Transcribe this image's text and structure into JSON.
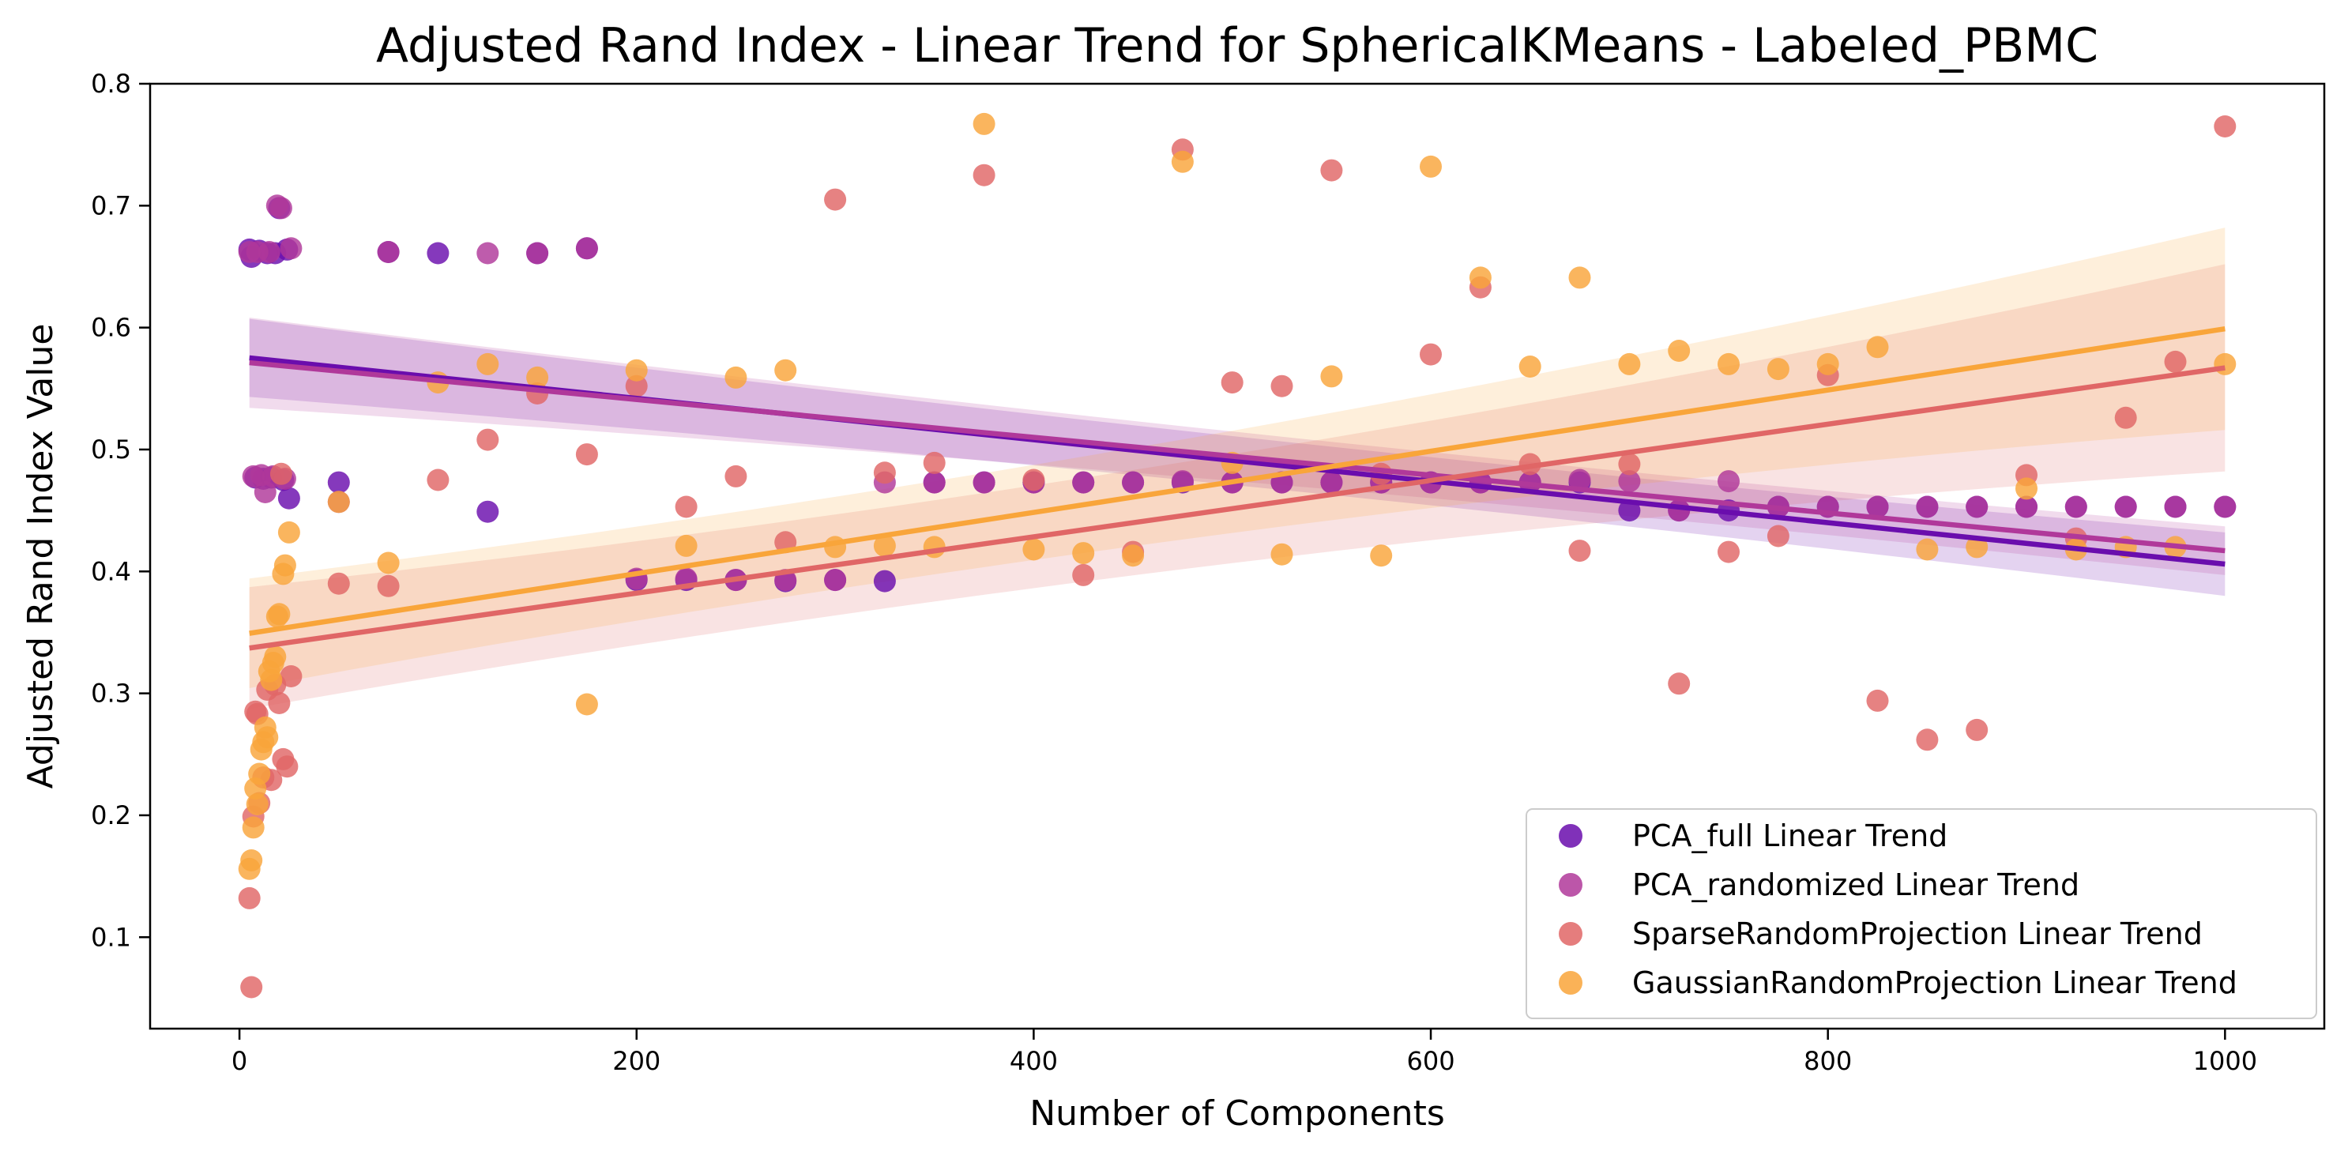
{
  "chart_data": {
    "type": "scatter",
    "title": "Adjusted Rand Index - Linear Trend for SphericalKMeans - Labeled_PBMC",
    "xlabel": "Number of Components",
    "ylabel": "Adjusted Rand Index Value",
    "xlim": [
      -45,
      1050
    ],
    "ylim": [
      0.025,
      0.8
    ],
    "xticks": [
      0,
      200,
      400,
      600,
      800,
      1000
    ],
    "yticks": [
      0.1,
      0.2,
      0.3,
      0.4,
      0.5,
      0.6,
      0.7,
      0.8
    ],
    "xtick_labels": [
      "0",
      "200",
      "400",
      "600",
      "800",
      "1000"
    ],
    "ytick_labels": [
      "0.1",
      "0.2",
      "0.3",
      "0.4",
      "0.5",
      "0.6",
      "0.7",
      "0.8"
    ],
    "grid": false,
    "legend_position": "bottom-right",
    "series": [
      {
        "name": "PCA_full Linear Trend",
        "color": "#6a0dad",
        "points": [
          [
            5,
            0.664
          ],
          [
            6,
            0.658
          ],
          [
            8,
            0.477
          ],
          [
            10,
            0.663
          ],
          [
            12,
            0.476
          ],
          [
            14,
            0.661
          ],
          [
            16,
            0.477
          ],
          [
            18,
            0.661
          ],
          [
            20,
            0.698
          ],
          [
            22,
            0.475
          ],
          [
            24,
            0.664
          ],
          [
            25,
            0.46
          ],
          [
            50,
            0.473
          ],
          [
            75,
            0.662
          ],
          [
            100,
            0.661
          ],
          [
            125,
            0.449
          ],
          [
            150,
            0.661
          ],
          [
            175,
            0.665
          ],
          [
            200,
            0.393
          ],
          [
            225,
            0.393
          ],
          [
            250,
            0.393
          ],
          [
            275,
            0.392
          ],
          [
            300,
            0.393
          ],
          [
            325,
            0.392
          ],
          [
            350,
            0.473
          ],
          [
            375,
            0.473
          ],
          [
            400,
            0.473
          ],
          [
            425,
            0.473
          ],
          [
            450,
            0.473
          ],
          [
            475,
            0.473
          ],
          [
            500,
            0.473
          ],
          [
            525,
            0.473
          ],
          [
            550,
            0.473
          ],
          [
            575,
            0.473
          ],
          [
            600,
            0.473
          ],
          [
            625,
            0.473
          ],
          [
            650,
            0.473
          ],
          [
            675,
            0.473
          ],
          [
            700,
            0.45
          ],
          [
            725,
            0.45
          ],
          [
            750,
            0.45
          ],
          [
            775,
            0.453
          ],
          [
            800,
            0.453
          ],
          [
            825,
            0.453
          ],
          [
            850,
            0.453
          ],
          [
            875,
            0.453
          ],
          [
            900,
            0.453
          ],
          [
            925,
            0.453
          ],
          [
            950,
            0.453
          ],
          [
            975,
            0.453
          ],
          [
            1000,
            0.453
          ]
        ],
        "trend": {
          "intercept": 0.576,
          "slope": -0.00017
        },
        "ci_halfwidth": [
          0.032,
          0.011,
          0.026
        ]
      },
      {
        "name": "PCA_randomized Linear Trend",
        "color": "#b0389a",
        "points": [
          [
            5,
            0.662
          ],
          [
            7,
            0.478
          ],
          [
            9,
            0.662
          ],
          [
            11,
            0.479
          ],
          [
            13,
            0.465
          ],
          [
            15,
            0.662
          ],
          [
            17,
            0.478
          ],
          [
            19,
            0.7
          ],
          [
            21,
            0.698
          ],
          [
            23,
            0.476
          ],
          [
            26,
            0.665
          ],
          [
            50,
            0.457
          ],
          [
            75,
            0.662
          ],
          [
            125,
            0.661
          ],
          [
            150,
            0.661
          ],
          [
            175,
            0.665
          ],
          [
            200,
            0.394
          ],
          [
            225,
            0.394
          ],
          [
            250,
            0.393
          ],
          [
            275,
            0.393
          ],
          [
            300,
            0.393
          ],
          [
            325,
            0.473
          ],
          [
            350,
            0.473
          ],
          [
            375,
            0.473
          ],
          [
            400,
            0.473
          ],
          [
            425,
            0.473
          ],
          [
            450,
            0.473
          ],
          [
            475,
            0.474
          ],
          [
            500,
            0.473
          ],
          [
            525,
            0.473
          ],
          [
            550,
            0.473
          ],
          [
            575,
            0.473
          ],
          [
            600,
            0.473
          ],
          [
            625,
            0.473
          ],
          [
            650,
            0.473
          ],
          [
            675,
            0.475
          ],
          [
            700,
            0.474
          ],
          [
            725,
            0.45
          ],
          [
            750,
            0.474
          ],
          [
            775,
            0.453
          ],
          [
            800,
            0.453
          ],
          [
            825,
            0.453
          ],
          [
            850,
            0.453
          ],
          [
            875,
            0.453
          ],
          [
            900,
            0.453
          ],
          [
            925,
            0.453
          ],
          [
            950,
            0.453
          ],
          [
            975,
            0.453
          ],
          [
            1000,
            0.453
          ]
        ],
        "trend": {
          "intercept": 0.572,
          "slope": -0.000155
        },
        "ci_halfwidth": [
          0.037,
          0.012,
          0.02
        ]
      },
      {
        "name": "SparseRandomProjection Linear Trend",
        "color": "#e06666",
        "points": [
          [
            5,
            0.132
          ],
          [
            6,
            0.059
          ],
          [
            7,
            0.199
          ],
          [
            8,
            0.285
          ],
          [
            9,
            0.283
          ],
          [
            10,
            0.21
          ],
          [
            12,
            0.231
          ],
          [
            14,
            0.303
          ],
          [
            16,
            0.229
          ],
          [
            18,
            0.307
          ],
          [
            20,
            0.292
          ],
          [
            21,
            0.48
          ],
          [
            22,
            0.246
          ],
          [
            24,
            0.24
          ],
          [
            26,
            0.314
          ],
          [
            50,
            0.39
          ],
          [
            75,
            0.388
          ],
          [
            100,
            0.475
          ],
          [
            125,
            0.508
          ],
          [
            150,
            0.546
          ],
          [
            175,
            0.496
          ],
          [
            200,
            0.552
          ],
          [
            225,
            0.453
          ],
          [
            250,
            0.478
          ],
          [
            275,
            0.424
          ],
          [
            300,
            0.705
          ],
          [
            325,
            0.481
          ],
          [
            350,
            0.489
          ],
          [
            375,
            0.725
          ],
          [
            400,
            0.475
          ],
          [
            425,
            0.397
          ],
          [
            450,
            0.416
          ],
          [
            475,
            0.746
          ],
          [
            500,
            0.555
          ],
          [
            525,
            0.552
          ],
          [
            550,
            0.729
          ],
          [
            575,
            0.48
          ],
          [
            600,
            0.578
          ],
          [
            625,
            0.633
          ],
          [
            650,
            0.488
          ],
          [
            675,
            0.417
          ],
          [
            700,
            0.488
          ],
          [
            725,
            0.308
          ],
          [
            750,
            0.416
          ],
          [
            775,
            0.429
          ],
          [
            800,
            0.561
          ],
          [
            825,
            0.294
          ],
          [
            850,
            0.262
          ],
          [
            875,
            0.27
          ],
          [
            900,
            0.479
          ],
          [
            925,
            0.427
          ],
          [
            950,
            0.526
          ],
          [
            975,
            0.572
          ],
          [
            1000,
            0.765
          ]
        ],
        "trend": {
          "intercept": 0.336,
          "slope": 0.000231
        },
        "ci_halfwidth": [
          0.05,
          0.022,
          0.085
        ]
      },
      {
        "name": "GaussianRandomProjection Linear Trend",
        "color": "#f9a53a",
        "points": [
          [
            5,
            0.156
          ],
          [
            6,
            0.163
          ],
          [
            7,
            0.19
          ],
          [
            8,
            0.222
          ],
          [
            9,
            0.209
          ],
          [
            10,
            0.234
          ],
          [
            11,
            0.254
          ],
          [
            12,
            0.26
          ],
          [
            13,
            0.272
          ],
          [
            14,
            0.264
          ],
          [
            15,
            0.318
          ],
          [
            16,
            0.311
          ],
          [
            17,
            0.325
          ],
          [
            18,
            0.33
          ],
          [
            19,
            0.363
          ],
          [
            20,
            0.365
          ],
          [
            22,
            0.398
          ],
          [
            23,
            0.405
          ],
          [
            25,
            0.432
          ],
          [
            50,
            0.457
          ],
          [
            75,
            0.407
          ],
          [
            100,
            0.555
          ],
          [
            125,
            0.57
          ],
          [
            150,
            0.559
          ],
          [
            175,
            0.291
          ],
          [
            200,
            0.565
          ],
          [
            225,
            0.421
          ],
          [
            250,
            0.559
          ],
          [
            275,
            0.565
          ],
          [
            300,
            0.42
          ],
          [
            325,
            0.421
          ],
          [
            350,
            0.42
          ],
          [
            375,
            0.767
          ],
          [
            400,
            0.418
          ],
          [
            425,
            0.415
          ],
          [
            450,
            0.413
          ],
          [
            475,
            0.736
          ],
          [
            500,
            0.489
          ],
          [
            525,
            0.414
          ],
          [
            550,
            0.56
          ],
          [
            575,
            0.413
          ],
          [
            600,
            0.732
          ],
          [
            625,
            0.641
          ],
          [
            650,
            0.568
          ],
          [
            675,
            0.641
          ],
          [
            700,
            0.57
          ],
          [
            725,
            0.581
          ],
          [
            750,
            0.57
          ],
          [
            775,
            0.566
          ],
          [
            800,
            0.57
          ],
          [
            825,
            0.584
          ],
          [
            850,
            0.418
          ],
          [
            875,
            0.42
          ],
          [
            900,
            0.468
          ],
          [
            925,
            0.418
          ],
          [
            950,
            0.42
          ],
          [
            975,
            0.42
          ],
          [
            1000,
            0.57
          ]
        ],
        "trend": {
          "intercept": 0.348,
          "slope": 0.000251
        },
        "ci_halfwidth": [
          0.045,
          0.02,
          0.083
        ]
      }
    ]
  }
}
